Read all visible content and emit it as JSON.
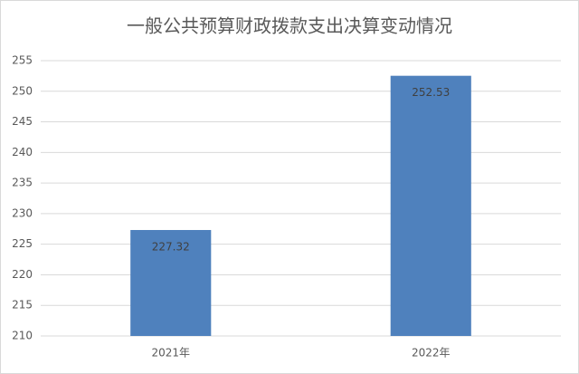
{
  "chart_data": {
    "type": "bar",
    "title": "一般公共预算财政拨款支出决算变动情况",
    "categories": [
      "2021年",
      "2022年"
    ],
    "values": [
      227.32,
      252.53
    ],
    "color": "#4f81bd",
    "ylim": [
      210,
      255
    ],
    "yticks": [
      210,
      215,
      220,
      225,
      230,
      235,
      240,
      245,
      250,
      255
    ],
    "grid": true
  }
}
